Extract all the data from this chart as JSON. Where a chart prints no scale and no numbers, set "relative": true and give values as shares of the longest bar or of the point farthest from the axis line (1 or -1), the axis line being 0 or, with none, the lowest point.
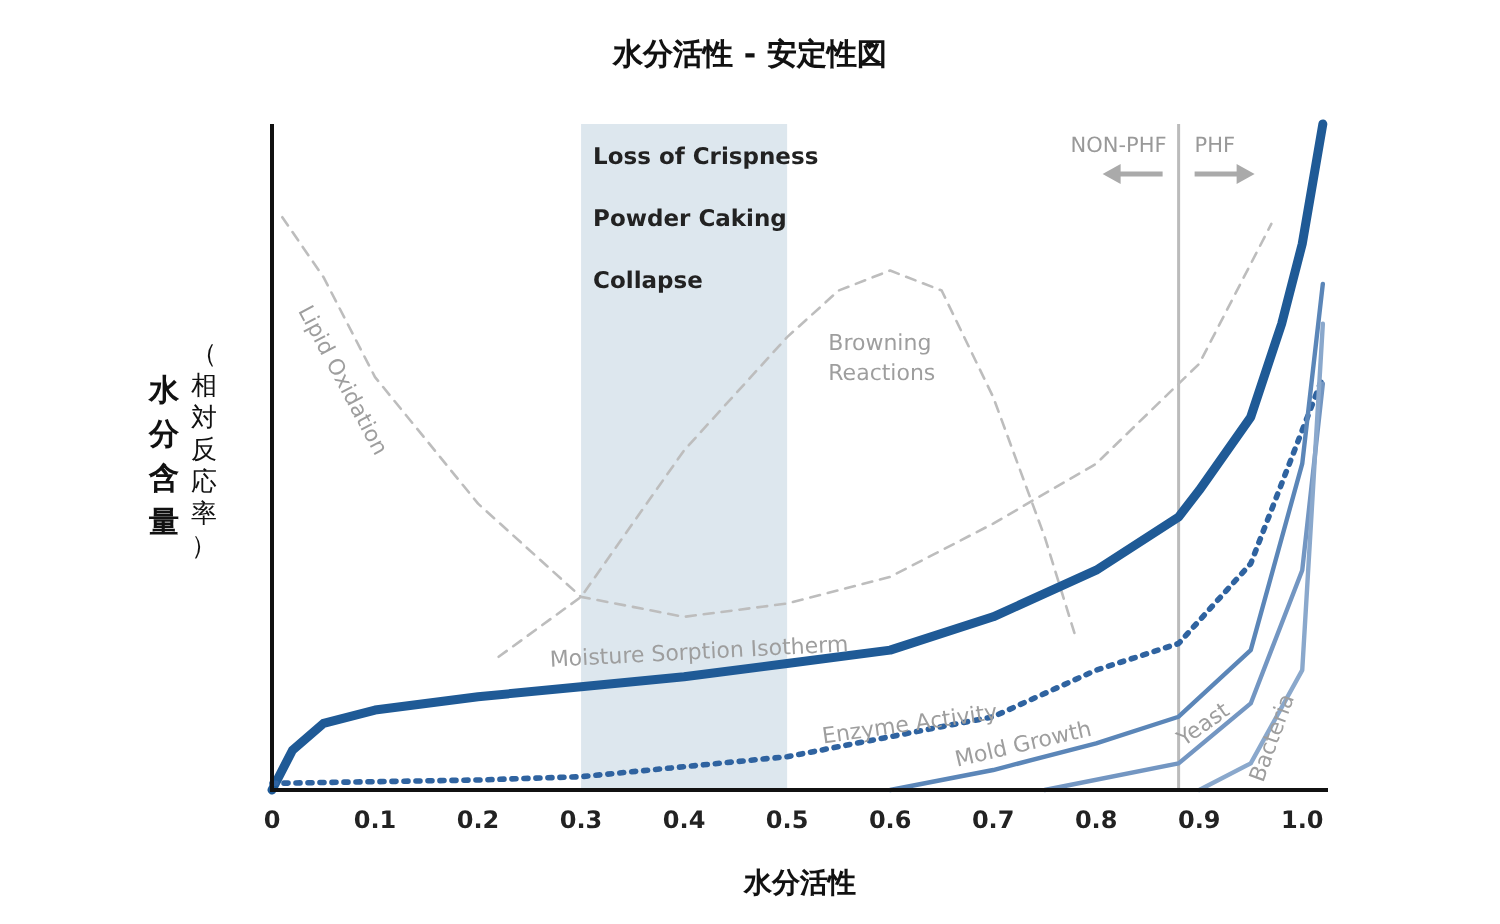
{
  "chart_data": {
    "type": "line",
    "title": "水分活性 - 安定性図",
    "xlabel": "水分活性",
    "ylabel": "水分含量（相対反応率）",
    "relative": true,
    "legend": false,
    "grid": false,
    "marker": "none",
    "xlim": [
      0,
      1.025
    ],
    "xticks": [
      0,
      0.1,
      0.2,
      0.3,
      0.4,
      0.5,
      0.6,
      0.7,
      0.8,
      0.9,
      {
        "value": 1,
        "label": "1.0"
      }
    ],
    "series": [
      {
        "name": "Lipid Oxidation",
        "color": "#bdbdbd",
        "line_style": "dashed",
        "x": [
          0.01,
          0.05,
          0.1,
          0.2,
          0.3,
          0.4,
          0.5,
          0.6,
          0.7,
          0.8,
          0.9,
          0.97
        ],
        "values": [
          0.86,
          0.77,
          0.62,
          0.43,
          0.29,
          0.26,
          0.28,
          0.32,
          0.4,
          0.49,
          0.64,
          0.85
        ]
      },
      {
        "name": "Browning Reactions",
        "color": "#bdbdbd",
        "line_style": "dashed",
        "x": [
          0.22,
          0.3,
          0.4,
          0.5,
          0.55,
          0.6,
          0.65,
          0.7,
          0.75,
          0.78
        ],
        "values": [
          0.2,
          0.29,
          0.51,
          0.68,
          0.75,
          0.78,
          0.75,
          0.59,
          0.38,
          0.23
        ]
      },
      {
        "name": "Moisture Sorption Isotherm",
        "color": "#1f5a96",
        "line_style": "solid",
        "x": [
          0,
          0.02,
          0.05,
          0.1,
          0.2,
          0.3,
          0.4,
          0.5,
          0.6,
          0.7,
          0.8,
          0.88,
          0.9,
          0.95,
          0.98,
          1.0,
          1.02
        ],
        "values": [
          0,
          0.06,
          0.1,
          0.12,
          0.14,
          0.155,
          0.17,
          0.19,
          0.21,
          0.26,
          0.33,
          0.41,
          0.45,
          0.56,
          0.7,
          0.82,
          1
        ]
      },
      {
        "name": "Enzyme Activity",
        "color": "#2f63a0",
        "line_style": "dotted",
        "x": [
          0,
          0.2,
          0.3,
          0.5,
          0.6,
          0.7,
          0.8,
          0.88,
          0.95,
          1.0,
          1.02
        ],
        "values": [
          0.01,
          0.015,
          0.02,
          0.05,
          0.08,
          0.11,
          0.18,
          0.22,
          0.34,
          0.54,
          0.62
        ]
      },
      {
        "name": "Mold Growth",
        "color": "#5b86b8",
        "line_style": "solid",
        "x": [
          0.6,
          0.7,
          0.8,
          0.88,
          0.95,
          1.0,
          1.02
        ],
        "values": [
          0,
          0.03,
          0.07,
          0.11,
          0.21,
          0.49,
          0.76
        ]
      },
      {
        "name": "Yeast",
        "color": "#7396c2",
        "line_style": "solid",
        "x": [
          0.75,
          0.88,
          0.95,
          1.0,
          1.02
        ],
        "values": [
          0,
          0.04,
          0.13,
          0.33,
          0.61
        ]
      },
      {
        "name": "Bacteria",
        "color": "#8aa8cc",
        "line_style": "solid",
        "x": [
          0.9,
          0.95,
          1.0,
          1.02
        ],
        "values": [
          0,
          0.04,
          0.18,
          0.7
        ]
      }
    ],
    "bands": [
      {
        "axis": "x",
        "from": 0.3,
        "to": 0.5,
        "color": "#dde7ee"
      }
    ],
    "ref_lines": [
      {
        "axis": "x",
        "value": 0.88,
        "color": "#bbbbbb",
        "line_style": "solid"
      }
    ],
    "annotations": [
      "Loss of Crispness",
      "Powder Caking",
      "Collapse",
      "NON-PHF",
      "PHF"
    ]
  }
}
